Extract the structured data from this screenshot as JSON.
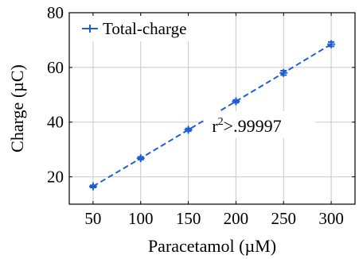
{
  "chart_data": {
    "type": "line",
    "xlabel": "Paracetamol (µM)",
    "ylabel": "Charge (µC)",
    "xlim": [
      25,
      325
    ],
    "ylim": [
      10,
      80
    ],
    "xticks": [
      50,
      100,
      150,
      200,
      250,
      300
    ],
    "yticks": [
      20,
      40,
      60,
      80
    ],
    "grid": true,
    "legend_position": "top-left",
    "series": [
      {
        "name": "Total-charge",
        "color": "#1f5fd6",
        "line_style": "dashed",
        "marker": "plus",
        "x": [
          50,
          100,
          150,
          200,
          250,
          300
        ],
        "y": [
          16.5,
          26.8,
          37.2,
          47.6,
          58.0,
          68.5
        ],
        "error": [
          0.4,
          0.5,
          0.5,
          0.5,
          0.8,
          0.8
        ]
      }
    ],
    "annotation": {
      "text_base": "r",
      "text_sup": "2",
      "text_rest": ">.99997",
      "x": 225,
      "y": 37
    }
  }
}
